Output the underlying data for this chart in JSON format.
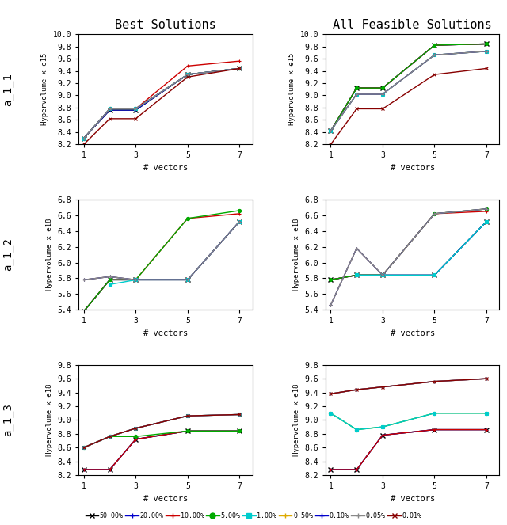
{
  "x": [
    1,
    2,
    3,
    5,
    7
  ],
  "col_titles": [
    "Best Solutions",
    "All Feasible Solutions"
  ],
  "row_labels": [
    "a_1_1",
    "a_1_2",
    "a_1_3"
  ],
  "colors": {
    "50.00%": "#000000",
    "20.00%": "#0000dd",
    "10.00%": "#dd0000",
    "5.00%": "#00aa00",
    "1.00%": "#00cccc",
    "0.50%": "#ddaa00",
    "0.10%": "#0000dd",
    "0.05%": "#aaaaaa",
    "0.01%": "#880000"
  },
  "markers": {
    "50.00%": "x",
    "20.00%": "+",
    "10.00%": "+",
    "5.00%": "o",
    "1.00%": "s",
    "0.50%": "+",
    "0.10%": "+",
    "0.05%": "+",
    "0.01%": "x"
  },
  "plots": {
    "a_1_1_best": {
      "ylabel": "Hypervolume x e15",
      "ylim": [
        8.2,
        10.0
      ],
      "yticks": [
        8.2,
        8.4,
        8.6,
        8.8,
        9.0,
        9.2,
        9.4,
        9.6,
        9.8,
        10.0
      ],
      "data": {
        "50.00%": [
          8.3,
          8.76,
          8.76,
          9.34,
          9.44
        ],
        "20.00%": [
          8.3,
          8.76,
          8.76,
          9.34,
          9.44
        ],
        "10.00%": [
          8.3,
          8.78,
          8.78,
          9.48,
          9.56
        ],
        "5.00%": [
          8.3,
          8.78,
          8.78,
          9.34,
          9.44
        ],
        "1.00%": [
          8.3,
          8.78,
          8.78,
          9.34,
          9.44
        ],
        "0.50%": [
          8.3,
          8.78,
          8.78,
          9.34,
          9.44
        ],
        "0.10%": [
          8.3,
          8.78,
          8.78,
          9.34,
          9.44
        ],
        "0.05%": [
          8.3,
          8.78,
          8.78,
          9.34,
          9.44
        ],
        "0.01%": [
          8.2,
          8.62,
          8.62,
          9.3,
          9.44
        ]
      }
    },
    "a_1_1_all": {
      "ylabel": "Hypervolume x e15",
      "ylim": [
        8.2,
        10.0
      ],
      "yticks": [
        8.2,
        8.4,
        8.6,
        8.8,
        9.0,
        9.2,
        9.4,
        9.6,
        9.8,
        10.0
      ],
      "data": {
        "50.00%": [
          8.42,
          9.12,
          9.12,
          9.82,
          9.84
        ],
        "20.00%": [
          8.42,
          9.12,
          9.12,
          9.82,
          9.84
        ],
        "10.00%": [
          8.42,
          9.12,
          9.12,
          9.82,
          9.84
        ],
        "5.00%": [
          8.42,
          9.12,
          9.12,
          9.82,
          9.84
        ],
        "1.00%": [
          8.42,
          9.02,
          9.02,
          9.66,
          9.72
        ],
        "0.50%": [
          8.42,
          9.02,
          9.02,
          9.66,
          9.72
        ],
        "0.10%": [
          8.42,
          9.02,
          9.02,
          9.66,
          9.72
        ],
        "0.05%": [
          8.42,
          9.02,
          9.02,
          9.66,
          9.72
        ],
        "0.01%": [
          8.2,
          8.78,
          8.78,
          9.34,
          9.44
        ]
      }
    },
    "a_1_2_best": {
      "ylabel": "Hypervolume x e18",
      "ylim": [
        5.4,
        6.8
      ],
      "yticks": [
        5.4,
        5.6,
        5.8,
        6.0,
        6.2,
        6.4,
        6.6,
        6.8
      ],
      "data": {
        "50.00%": [
          5.38,
          5.78,
          5.78,
          5.78,
          6.52
        ],
        "20.00%": [
          5.38,
          5.78,
          5.78,
          5.78,
          6.52
        ],
        "10.00%": [
          5.38,
          5.78,
          5.78,
          6.56,
          6.62
        ],
        "5.00%": [
          5.38,
          5.78,
          5.78,
          6.56,
          6.66
        ],
        "1.00%": [
          null,
          5.72,
          5.78,
          5.78,
          6.52
        ],
        "0.50%": [
          5.78,
          5.82,
          5.78,
          5.78,
          6.52
        ],
        "0.10%": [
          5.78,
          5.82,
          5.78,
          5.78,
          6.52
        ],
        "0.05%": [
          5.78,
          5.82,
          5.78,
          5.78,
          6.52
        ],
        "0.01%": [
          null,
          null,
          null,
          null,
          null
        ]
      }
    },
    "a_1_2_all": {
      "ylabel": "Hypervolume x e18",
      "ylim": [
        5.4,
        6.8
      ],
      "yticks": [
        5.4,
        5.6,
        5.8,
        6.0,
        6.2,
        6.4,
        6.6,
        6.8
      ],
      "data": {
        "50.00%": [
          5.78,
          5.84,
          5.84,
          5.84,
          6.52
        ],
        "20.00%": [
          5.78,
          5.84,
          5.84,
          5.84,
          6.52
        ],
        "10.00%": [
          5.78,
          5.84,
          5.84,
          6.62,
          6.65
        ],
        "5.00%": [
          5.78,
          5.84,
          5.84,
          6.62,
          6.68
        ],
        "1.00%": [
          null,
          5.84,
          5.84,
          5.84,
          6.52
        ],
        "0.50%": [
          5.46,
          6.18,
          5.84,
          6.62,
          6.68
        ],
        "0.10%": [
          5.46,
          6.18,
          5.84,
          6.62,
          6.68
        ],
        "0.05%": [
          5.46,
          6.18,
          5.84,
          6.62,
          6.68
        ],
        "0.01%": [
          null,
          null,
          null,
          null,
          null
        ]
      }
    },
    "a_1_3_best": {
      "ylabel": "Hypervolume x e18",
      "ylim": [
        8.2,
        9.8
      ],
      "yticks": [
        8.2,
        8.4,
        8.6,
        8.8,
        9.0,
        9.2,
        9.4,
        9.6,
        9.8
      ],
      "data": {
        "50.00%": [
          8.28,
          8.28,
          8.72,
          8.84,
          8.84
        ],
        "20.00%": [
          8.28,
          8.28,
          8.72,
          8.84,
          8.84
        ],
        "10.00%": [
          8.28,
          8.28,
          8.72,
          8.84,
          8.84
        ],
        "5.00%": [
          8.6,
          8.76,
          8.76,
          8.84,
          8.84
        ],
        "1.00%": [
          8.6,
          8.76,
          8.88,
          9.06,
          9.08
        ],
        "0.50%": [
          8.6,
          8.76,
          8.88,
          9.06,
          9.08
        ],
        "0.10%": [
          8.6,
          8.76,
          8.88,
          9.06,
          9.08
        ],
        "0.05%": [
          8.6,
          8.76,
          8.88,
          9.06,
          9.08
        ],
        "0.01%": [
          8.6,
          8.76,
          8.88,
          9.06,
          9.08
        ]
      }
    },
    "a_1_3_all": {
      "ylabel": "Hypervolume x e18",
      "ylim": [
        8.2,
        9.8
      ],
      "yticks": [
        8.2,
        8.4,
        8.6,
        8.8,
        9.0,
        9.2,
        9.4,
        9.6,
        9.8
      ],
      "data": {
        "50.00%": [
          8.28,
          8.28,
          8.78,
          8.86,
          8.86
        ],
        "20.00%": [
          8.28,
          8.28,
          8.78,
          8.86,
          8.86
        ],
        "10.00%": [
          8.28,
          8.28,
          8.78,
          8.86,
          8.86
        ],
        "5.00%": [
          9.1,
          8.86,
          8.9,
          9.1,
          9.1
        ],
        "1.00%": [
          9.1,
          8.86,
          8.9,
          9.1,
          9.1
        ],
        "0.50%": [
          9.38,
          9.44,
          9.48,
          9.56,
          9.6
        ],
        "0.10%": [
          9.38,
          9.44,
          9.48,
          9.56,
          9.6
        ],
        "0.05%": [
          9.38,
          9.44,
          9.48,
          9.56,
          9.6
        ],
        "0.01%": [
          9.38,
          9.44,
          9.48,
          9.56,
          9.6
        ]
      }
    }
  },
  "legend_order": [
    "50.00%",
    "20.00%",
    "10.00%",
    "5.00%",
    "1.00%",
    "0.50%",
    "0.10%",
    "0.05%",
    "0.01%"
  ]
}
